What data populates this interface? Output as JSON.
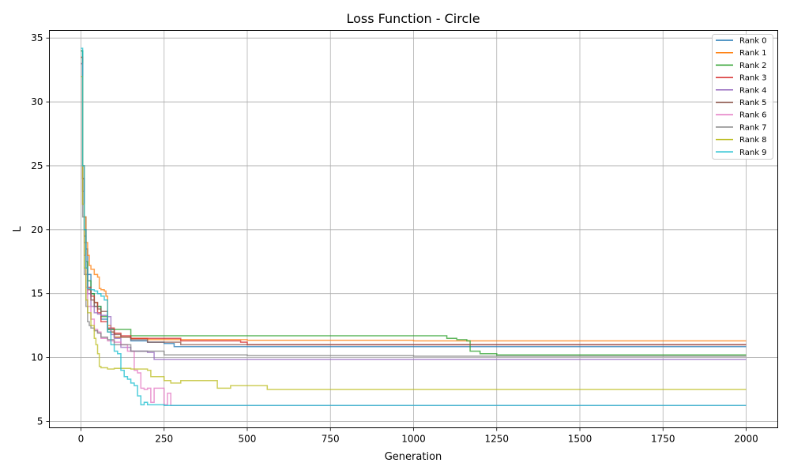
{
  "chart_data": {
    "type": "line",
    "title": "Loss Function - Circle",
    "xlabel": "Generation",
    "ylabel": "L",
    "xlim": [
      -95,
      2095
    ],
    "ylim": [
      4.5,
      35.6
    ],
    "xticks": [
      0,
      250,
      500,
      750,
      1000,
      1250,
      1500,
      1750,
      2000
    ],
    "yticks": [
      5,
      10,
      15,
      20,
      25,
      30,
      35
    ],
    "grid": true,
    "legend_position": "top-right",
    "series": [
      {
        "name": "Rank 0",
        "color": "#1f77b4",
        "x": [
          0,
          5,
          10,
          15,
          20,
          30,
          40,
          60,
          80,
          100,
          150,
          200,
          250,
          280,
          2000
        ],
        "y": [
          34.0,
          25.0,
          21.0,
          18.5,
          16.5,
          15.0,
          14.0,
          13.0,
          12.2,
          11.6,
          11.3,
          11.2,
          11.1,
          10.85,
          10.85
        ]
      },
      {
        "name": "Rank 1",
        "color": "#ff7f0e",
        "x": [
          0,
          5,
          10,
          15,
          20,
          25,
          30,
          40,
          50,
          55,
          60,
          70,
          75,
          80,
          90,
          100,
          150,
          200,
          300,
          500,
          1000,
          1500,
          1900,
          2000
        ],
        "y": [
          33.5,
          25.0,
          21.0,
          19.0,
          18.0,
          17.2,
          16.9,
          16.5,
          16.3,
          15.4,
          15.3,
          15.2,
          14.8,
          12.5,
          12.0,
          11.6,
          11.5,
          11.4,
          11.4,
          11.35,
          11.3,
          11.3,
          11.3,
          11.3
        ]
      },
      {
        "name": "Rank 2",
        "color": "#2ca02c",
        "x": [
          0,
          5,
          10,
          15,
          20,
          30,
          40,
          50,
          60,
          80,
          100,
          140,
          150,
          300,
          600,
          1000,
          1100,
          1130,
          1160,
          1170,
          1200,
          1250,
          1260,
          1500,
          1750,
          2000
        ],
        "y": [
          34.0,
          24.0,
          20.0,
          17.5,
          16.0,
          15.0,
          14.3,
          14.0,
          13.2,
          12.2,
          12.2,
          12.2,
          11.7,
          11.7,
          11.7,
          11.7,
          11.5,
          11.4,
          11.3,
          10.5,
          10.3,
          10.2,
          10.2,
          10.2,
          10.2,
          10.2
        ]
      },
      {
        "name": "Rank 3",
        "color": "#d62728",
        "x": [
          0,
          5,
          10,
          15,
          20,
          30,
          40,
          50,
          60,
          80,
          100,
          120,
          150,
          300,
          480,
          500,
          1000,
          2000
        ],
        "y": [
          33.0,
          24.0,
          20.0,
          17.0,
          15.5,
          14.8,
          14.3,
          13.5,
          12.8,
          12.3,
          11.9,
          11.7,
          11.5,
          11.3,
          11.2,
          11.0,
          11.0,
          11.0
        ]
      },
      {
        "name": "Rank 4",
        "color": "#9467bd",
        "x": [
          0,
          5,
          10,
          15,
          20,
          30,
          40,
          50,
          60,
          80,
          90,
          100,
          120,
          150,
          200,
          220,
          1000,
          2000
        ],
        "y": [
          33.0,
          23.0,
          19.0,
          16.5,
          15.0,
          14.0,
          13.5,
          13.4,
          13.3,
          13.2,
          11.8,
          11.5,
          10.8,
          10.5,
          10.4,
          9.85,
          9.85,
          9.85
        ]
      },
      {
        "name": "Rank 5",
        "color": "#8c564b",
        "x": [
          0,
          5,
          10,
          15,
          20,
          30,
          40,
          50,
          60,
          80,
          100,
          120,
          150,
          200,
          300,
          2000
        ],
        "y": [
          33.5,
          24.0,
          19.5,
          17.0,
          15.3,
          14.5,
          14.0,
          13.8,
          13.6,
          12.0,
          11.8,
          11.6,
          11.4,
          11.2,
          11.0,
          11.0
        ]
      },
      {
        "name": "Rank 6",
        "color": "#e377c2",
        "x": [
          0,
          5,
          10,
          15,
          20,
          30,
          40,
          50,
          60,
          80,
          100,
          120,
          140,
          160,
          170,
          180,
          190,
          200,
          210,
          220,
          240,
          250,
          260,
          270,
          2000
        ],
        "y": [
          33.0,
          22.0,
          18.0,
          15.5,
          14.0,
          13.0,
          12.2,
          12.0,
          11.5,
          11.3,
          11.2,
          11.0,
          10.5,
          9.0,
          8.8,
          7.6,
          7.5,
          7.6,
          6.5,
          7.6,
          7.6,
          6.3,
          7.2,
          6.25,
          6.25
        ]
      },
      {
        "name": "Rank 7",
        "color": "#7f7f7f",
        "x": [
          0,
          5,
          10,
          15,
          20,
          25,
          30,
          40,
          50,
          60,
          80,
          100,
          150,
          250,
          500,
          1000,
          2000
        ],
        "y": [
          33.0,
          21.0,
          16.5,
          14.0,
          12.8,
          12.5,
          12.3,
          12.1,
          11.9,
          11.6,
          11.4,
          11.0,
          10.5,
          10.2,
          10.15,
          10.1,
          10.1
        ]
      },
      {
        "name": "Rank 8",
        "color": "#bcbd22",
        "x": [
          0,
          5,
          10,
          15,
          20,
          30,
          40,
          45,
          50,
          55,
          60,
          80,
          100,
          150,
          200,
          210,
          250,
          270,
          300,
          400,
          410,
          450,
          500,
          550,
          560,
          1000,
          2000
        ],
        "y": [
          32.0,
          22.0,
          17.0,
          14.5,
          13.5,
          12.5,
          11.5,
          11.0,
          10.3,
          9.3,
          9.2,
          9.1,
          9.15,
          9.1,
          9.0,
          8.5,
          8.2,
          8.0,
          8.2,
          8.2,
          7.6,
          7.8,
          7.8,
          7.8,
          7.5,
          7.5,
          7.5
        ]
      },
      {
        "name": "Rank 9",
        "color": "#17becf",
        "x": [
          0,
          5,
          10,
          15,
          20,
          25,
          30,
          40,
          50,
          60,
          70,
          80,
          90,
          100,
          110,
          120,
          130,
          140,
          150,
          160,
          170,
          180,
          190,
          200,
          220,
          250,
          2000
        ],
        "y": [
          34.2,
          25.0,
          20.0,
          17.0,
          15.4,
          15.4,
          15.3,
          15.2,
          15.0,
          14.8,
          14.5,
          12.0,
          11.0,
          10.5,
          10.3,
          9.0,
          8.5,
          8.3,
          8.0,
          7.8,
          7.0,
          6.3,
          6.5,
          6.3,
          6.3,
          6.25,
          6.25
        ]
      }
    ]
  }
}
